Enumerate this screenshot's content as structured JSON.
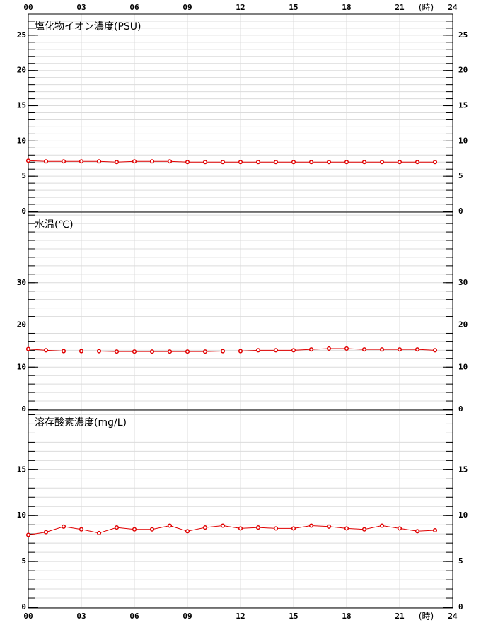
{
  "x_axis": {
    "xlim": [
      0,
      24
    ],
    "unit": "(時)",
    "xticks": [
      {
        "value": 0,
        "label": "00"
      },
      {
        "value": 3,
        "label": "03"
      },
      {
        "value": 6,
        "label": "06"
      },
      {
        "value": 9,
        "label": "09"
      },
      12,
      15,
      18,
      21,
      24
    ]
  },
  "chart_data": [
    {
      "type": "line",
      "title": "塩化物イオン濃度(PSU)",
      "x": [
        0,
        1,
        2,
        3,
        4,
        5,
        6,
        7,
        8,
        9,
        10,
        11,
        12,
        13,
        14,
        15,
        16,
        17,
        18,
        19,
        20,
        21,
        22,
        23
      ],
      "series": [
        {
          "color": "#e00000",
          "values": [
            7.2,
            7.1,
            7.1,
            7.1,
            7.1,
            7.0,
            7.1,
            7.1,
            7.1,
            7.0,
            7.0,
            7.0,
            7.0,
            7.0,
            7.0,
            7.0,
            7.0,
            7.0,
            7.0,
            7.0,
            7.0,
            7.0,
            7.0,
            7.0
          ]
        }
      ],
      "ylim": [
        0,
        28
      ],
      "yticks": [
        0,
        5,
        10,
        15,
        20,
        25
      ],
      "yminor": 1,
      "grid": true
    },
    {
      "type": "line",
      "title": "水温(℃)",
      "x": [
        0,
        1,
        2,
        3,
        4,
        5,
        6,
        7,
        8,
        9,
        10,
        11,
        12,
        13,
        14,
        15,
        16,
        17,
        18,
        19,
        20,
        21,
        22,
        23
      ],
      "series": [
        {
          "color": "#e00000",
          "values": [
            14.3,
            14.0,
            13.8,
            13.8,
            13.8,
            13.7,
            13.7,
            13.7,
            13.7,
            13.7,
            13.7,
            13.8,
            13.8,
            14.0,
            14.0,
            14.0,
            14.2,
            14.4,
            14.4,
            14.2,
            14.2,
            14.2,
            14.2,
            14.0
          ]
        }
      ],
      "ylim": [
        0,
        46.7
      ],
      "yticks": [
        0,
        10,
        20,
        30
      ],
      "yminor": 2,
      "grid": true
    },
    {
      "type": "line",
      "title": "溶存酸素濃度(mg/L)",
      "x": [
        0,
        1,
        2,
        3,
        4,
        5,
        6,
        7,
        8,
        9,
        10,
        11,
        12,
        13,
        14,
        15,
        16,
        17,
        18,
        19,
        20,
        21,
        22,
        23
      ],
      "series": [
        {
          "color": "#e00000",
          "values": [
            7.9,
            8.2,
            8.8,
            8.5,
            8.1,
            8.7,
            8.5,
            8.5,
            8.9,
            8.3,
            8.7,
            8.9,
            8.6,
            8.7,
            8.6,
            8.6,
            8.9,
            8.8,
            8.6,
            8.5,
            8.9,
            8.6,
            8.3,
            8.4
          ]
        }
      ],
      "ylim": [
        0,
        21.5
      ],
      "yticks": [
        0,
        5,
        10,
        15
      ],
      "yminor": 1,
      "grid": true
    }
  ]
}
